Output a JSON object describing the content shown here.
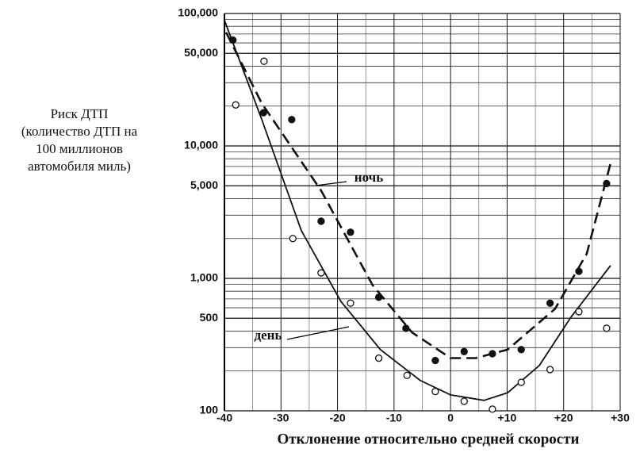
{
  "chart_data": {
    "type": "scatter",
    "ylabel_lines": [
      "Риск ДТП",
      "(количество ДТП на",
      "100 миллионов",
      "автомобиля миль)"
    ],
    "xlabel": "Отклонение относительно средней скорости",
    "log_y": true,
    "grid": true,
    "xlim": [
      -40,
      30
    ],
    "ylim": [
      100,
      100000
    ],
    "xticks": [
      -40,
      -30,
      -20,
      -10,
      0,
      {
        "value": 10,
        "label": "+10"
      },
      {
        "value": 20,
        "label": "+20"
      },
      {
        "value": 30,
        "label": "+30"
      }
    ],
    "x_minor_grid": [
      -35,
      -25,
      -15,
      -5,
      5,
      15,
      25
    ],
    "yticks": [
      100,
      500,
      {
        "value": 1000,
        "label": "1,000"
      },
      {
        "value": 5000,
        "label": "5,000"
      },
      {
        "value": 10000,
        "label": "10,000"
      },
      {
        "value": 50000,
        "label": "50,000"
      },
      {
        "value": 100000,
        "label": "100,000"
      }
    ],
    "y_minor_grid": [
      200,
      300,
      400,
      600,
      700,
      800,
      900,
      2000,
      3000,
      4000,
      6000,
      7000,
      8000,
      9000,
      20000,
      30000,
      40000,
      60000,
      70000,
      80000,
      90000
    ],
    "series": [
      {
        "name": "ночь",
        "color": "#111111",
        "marker": "filled",
        "dashed": true,
        "x": [
          -38.5,
          -33.1,
          -28.1,
          -22.9,
          -17.7,
          -12.7,
          -7.9,
          -2.7,
          2.4,
          7.4,
          12.5,
          17.6,
          22.7,
          27.6
        ],
        "values": [
          63000,
          17800,
          15800,
          2700,
          2230,
          720,
          420,
          240,
          280,
          270,
          290,
          650,
          1130,
          5200
        ],
        "fit_x": [
          -39.7,
          -33.4,
          -22.9,
          -13.8,
          -6.8,
          0,
          4.5,
          10.1,
          18.5,
          24.1,
          28.3
        ],
        "fit_values": [
          72000,
          21000,
          4600,
          890,
          390,
          250,
          250,
          290,
          590,
          1540,
          7400
        ]
      },
      {
        "name": "день",
        "color": "#111111",
        "marker": "open",
        "dashed": false,
        "x": [
          -38.0,
          -33.0,
          -27.9,
          -22.9,
          -17.7,
          -12.7,
          -7.7,
          -2.7,
          2.4,
          7.4,
          12.5,
          17.6,
          22.7,
          27.6
        ],
        "values": [
          20400,
          43600,
          2000,
          1100,
          650,
          250,
          185,
          140,
          118,
          103,
          164,
          205,
          560,
          420
        ],
        "fit_x": [
          -40,
          -33.4,
          -26.4,
          -19.4,
          -12.4,
          -5.4,
          0,
          5.9,
          10.1,
          15.7,
          21.3,
          28.3
        ],
        "fit_values": [
          89000,
          15900,
          2300,
          670,
          290,
          170,
          132,
          120,
          137,
          220,
          510,
          1250
        ]
      }
    ]
  }
}
